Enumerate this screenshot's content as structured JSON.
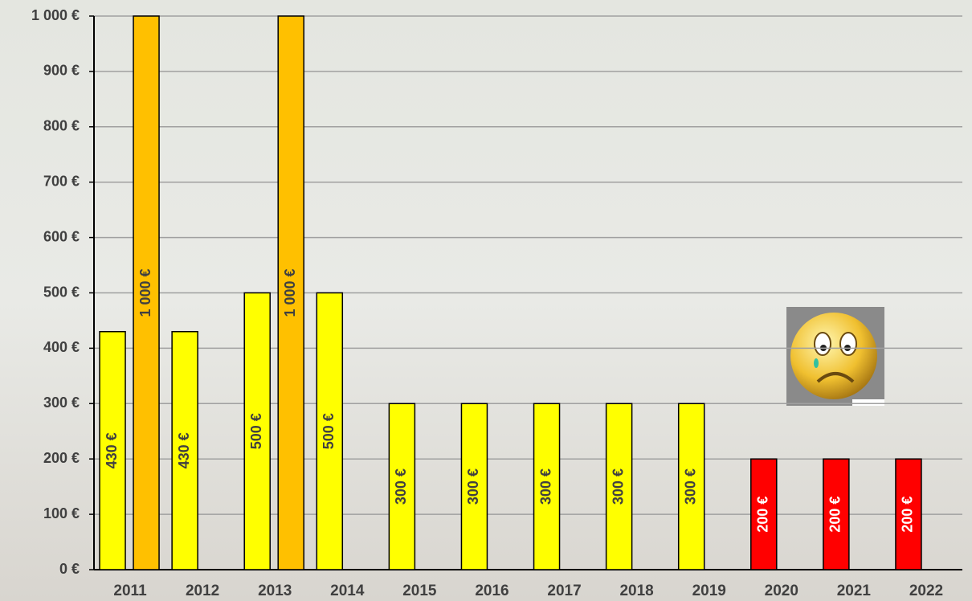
{
  "chart_data": {
    "type": "bar",
    "categories": [
      "2011",
      "2012",
      "2013",
      "2014",
      "2015",
      "2016",
      "2017",
      "2018",
      "2019",
      "2020",
      "2021",
      "2022"
    ],
    "series": [
      {
        "color": "#ffff00",
        "colors": [
          "#ffff00",
          "#ffff00",
          "#ffff00",
          "#ffff00",
          "#ffff00",
          "#ffff00",
          "#ffff00",
          "#ffff00",
          "#ffff00",
          "#ff0000",
          "#ff0000",
          "#ff0000"
        ],
        "values": [
          430,
          430,
          500,
          500,
          300,
          300,
          300,
          300,
          300,
          200,
          200,
          200
        ],
        "value_labels": [
          "430 €",
          "430 €",
          "500 €",
          "500 €",
          "300 €",
          "300 €",
          "300 €",
          "300 €",
          "300 €",
          "200 €",
          "200 €",
          "200 €"
        ]
      },
      {
        "color": "#ffc000",
        "values": [
          1000,
          null,
          1000,
          null,
          null,
          null,
          null,
          null,
          null,
          null,
          null,
          null
        ],
        "value_labels": [
          "1 000 €",
          null,
          "1 000 €",
          null,
          null,
          null,
          null,
          null,
          null,
          null,
          null,
          null
        ]
      }
    ],
    "ylim": [
      0,
      1000
    ],
    "yticks": [
      {
        "value": 0,
        "label": "0 €"
      },
      {
        "value": 100,
        "label": "100 €"
      },
      {
        "value": 200,
        "label": "200 €"
      },
      {
        "value": 300,
        "label": "300 €"
      },
      {
        "value": 400,
        "label": "400 €"
      },
      {
        "value": 500,
        "label": "500 €"
      },
      {
        "value": 600,
        "label": "600 €"
      },
      {
        "value": 700,
        "label": "700 €"
      },
      {
        "value": 800,
        "label": "800 €"
      },
      {
        "value": 900,
        "label": "900 €"
      },
      {
        "value": 1000,
        "label": "1 000 €"
      }
    ],
    "grid": true
  }
}
